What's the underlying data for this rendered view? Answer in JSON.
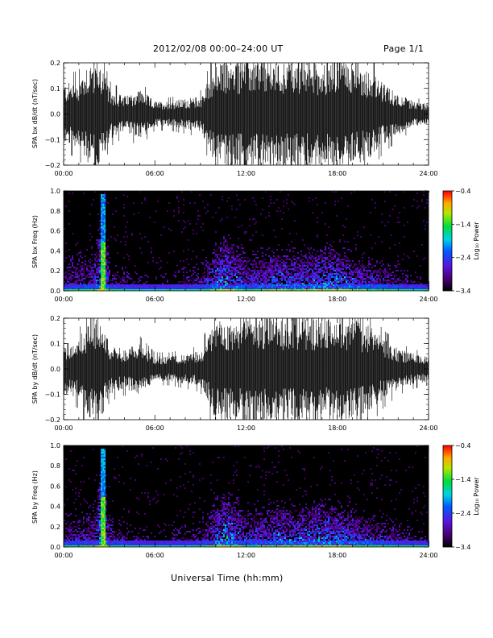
{
  "header": {
    "title": "2012/02/08  00:00–24:00 UT",
    "page": "Page 1/1"
  },
  "xaxis_title": "Universal Time (hh:mm)",
  "chart_data": [
    {
      "type": "line",
      "name": "bx-timeseries",
      "ylabel": "SPA bx dB/dt (nT/sec)",
      "xlim": [
        0,
        24
      ],
      "ylim": [
        -0.2,
        0.2
      ],
      "xtick_labels": [
        "00:00",
        "06:00",
        "12:00",
        "18:00",
        "24:00"
      ],
      "ytick_labels": [
        "−0.2",
        "−0.1",
        "0.0",
        "0.1",
        "0.2"
      ],
      "ytick_values": [
        -0.2,
        -0.1,
        0.0,
        0.1,
        0.2
      ],
      "envelope_hours": [
        0,
        1,
        1.5,
        2,
        2.5,
        3,
        4,
        5,
        6,
        7,
        8,
        9,
        10,
        11,
        12,
        13,
        14,
        15,
        16,
        17,
        18,
        19,
        20,
        21,
        22,
        23,
        24
      ],
      "envelope_amplitude": [
        0.12,
        0.13,
        0.2,
        0.22,
        0.2,
        0.1,
        0.07,
        0.1,
        0.05,
        0.05,
        0.06,
        0.07,
        0.2,
        0.2,
        0.22,
        0.22,
        0.2,
        0.22,
        0.21,
        0.2,
        0.22,
        0.2,
        0.18,
        0.12,
        0.08,
        0.05,
        0.04
      ]
    },
    {
      "type": "heatmap",
      "name": "bx-spectrogram",
      "ylabel": "SPA bx Freq (Hz)",
      "xlim": [
        0,
        24
      ],
      "ylim": [
        0,
        1.0
      ],
      "xtick_labels": [
        "00:00",
        "06:00",
        "12:00",
        "18:00",
        "24:00"
      ],
      "ytick_labels": [
        "0.0",
        "0.2",
        "0.4",
        "0.6",
        "0.8",
        "1.0"
      ],
      "ytick_values": [
        0,
        0.2,
        0.4,
        0.6,
        0.8,
        1.0
      ],
      "colorbar_label": "Log₁₀ Power",
      "colorbar_ticks": [
        "−0.4",
        "−1.4",
        "−2.4",
        "−3.4"
      ],
      "colorbar_range": [
        -3.4,
        -0.4
      ],
      "activity_hours": [
        0,
        2,
        2.5,
        3,
        6,
        9,
        10.5,
        12,
        14,
        16,
        17.5,
        20,
        22,
        24
      ],
      "activity_level": [
        0.35,
        0.45,
        1.0,
        0.35,
        0.15,
        0.3,
        0.9,
        0.45,
        0.65,
        0.7,
        0.8,
        0.55,
        0.35,
        0.2
      ],
      "activity_maxfreq": [
        0.35,
        0.45,
        0.95,
        0.3,
        0.15,
        0.3,
        0.6,
        0.45,
        0.45,
        0.45,
        0.5,
        0.35,
        0.25,
        0.15
      ]
    },
    {
      "type": "line",
      "name": "by-timeseries",
      "ylabel": "SPA by dB/dt (nT/sec)",
      "xlim": [
        0,
        24
      ],
      "ylim": [
        -0.2,
        0.2
      ],
      "xtick_labels": [
        "00:00",
        "06:00",
        "12:00",
        "18:00",
        "24:00"
      ],
      "ytick_labels": [
        "−0.2",
        "−0.1",
        "0.0",
        "0.1",
        "0.2"
      ],
      "ytick_values": [
        -0.2,
        -0.1,
        0.0,
        0.1,
        0.2
      ],
      "envelope_hours": [
        0,
        1,
        1.5,
        2,
        2.5,
        3,
        4,
        5,
        6,
        7,
        8,
        9,
        10,
        11,
        12,
        13,
        14,
        15,
        16,
        17,
        18,
        19,
        20,
        21,
        22,
        23,
        24
      ],
      "envelope_amplitude": [
        0.1,
        0.12,
        0.18,
        0.22,
        0.2,
        0.1,
        0.08,
        0.1,
        0.05,
        0.05,
        0.06,
        0.07,
        0.2,
        0.2,
        0.22,
        0.22,
        0.2,
        0.22,
        0.21,
        0.2,
        0.22,
        0.2,
        0.18,
        0.12,
        0.08,
        0.06,
        0.05
      ]
    },
    {
      "type": "heatmap",
      "name": "by-spectrogram",
      "ylabel": "SPA by Freq (Hz)",
      "xlim": [
        0,
        24
      ],
      "ylim": [
        0,
        1.0
      ],
      "xtick_labels": [
        "00:00",
        "06:00",
        "12:00",
        "18:00",
        "24:00"
      ],
      "ytick_labels": [
        "0.0",
        "0.2",
        "0.4",
        "0.6",
        "0.8",
        "1.0"
      ],
      "ytick_values": [
        0,
        0.2,
        0.4,
        0.6,
        0.8,
        1.0
      ],
      "colorbar_label": "Log₁₀ Power",
      "colorbar_ticks": [
        "−0.4",
        "−1.4",
        "−2.4",
        "−3.4"
      ],
      "colorbar_range": [
        -3.4,
        -0.4
      ],
      "activity_hours": [
        0,
        2,
        2.5,
        3,
        6,
        9,
        10.5,
        12,
        14,
        16,
        17.5,
        20,
        22,
        24
      ],
      "activity_level": [
        0.35,
        0.45,
        1.0,
        0.35,
        0.15,
        0.3,
        0.9,
        0.45,
        0.65,
        0.7,
        0.8,
        0.55,
        0.35,
        0.2
      ],
      "activity_maxfreq": [
        0.35,
        0.45,
        0.95,
        0.3,
        0.15,
        0.3,
        0.6,
        0.45,
        0.45,
        0.45,
        0.5,
        0.35,
        0.25,
        0.15
      ]
    }
  ]
}
